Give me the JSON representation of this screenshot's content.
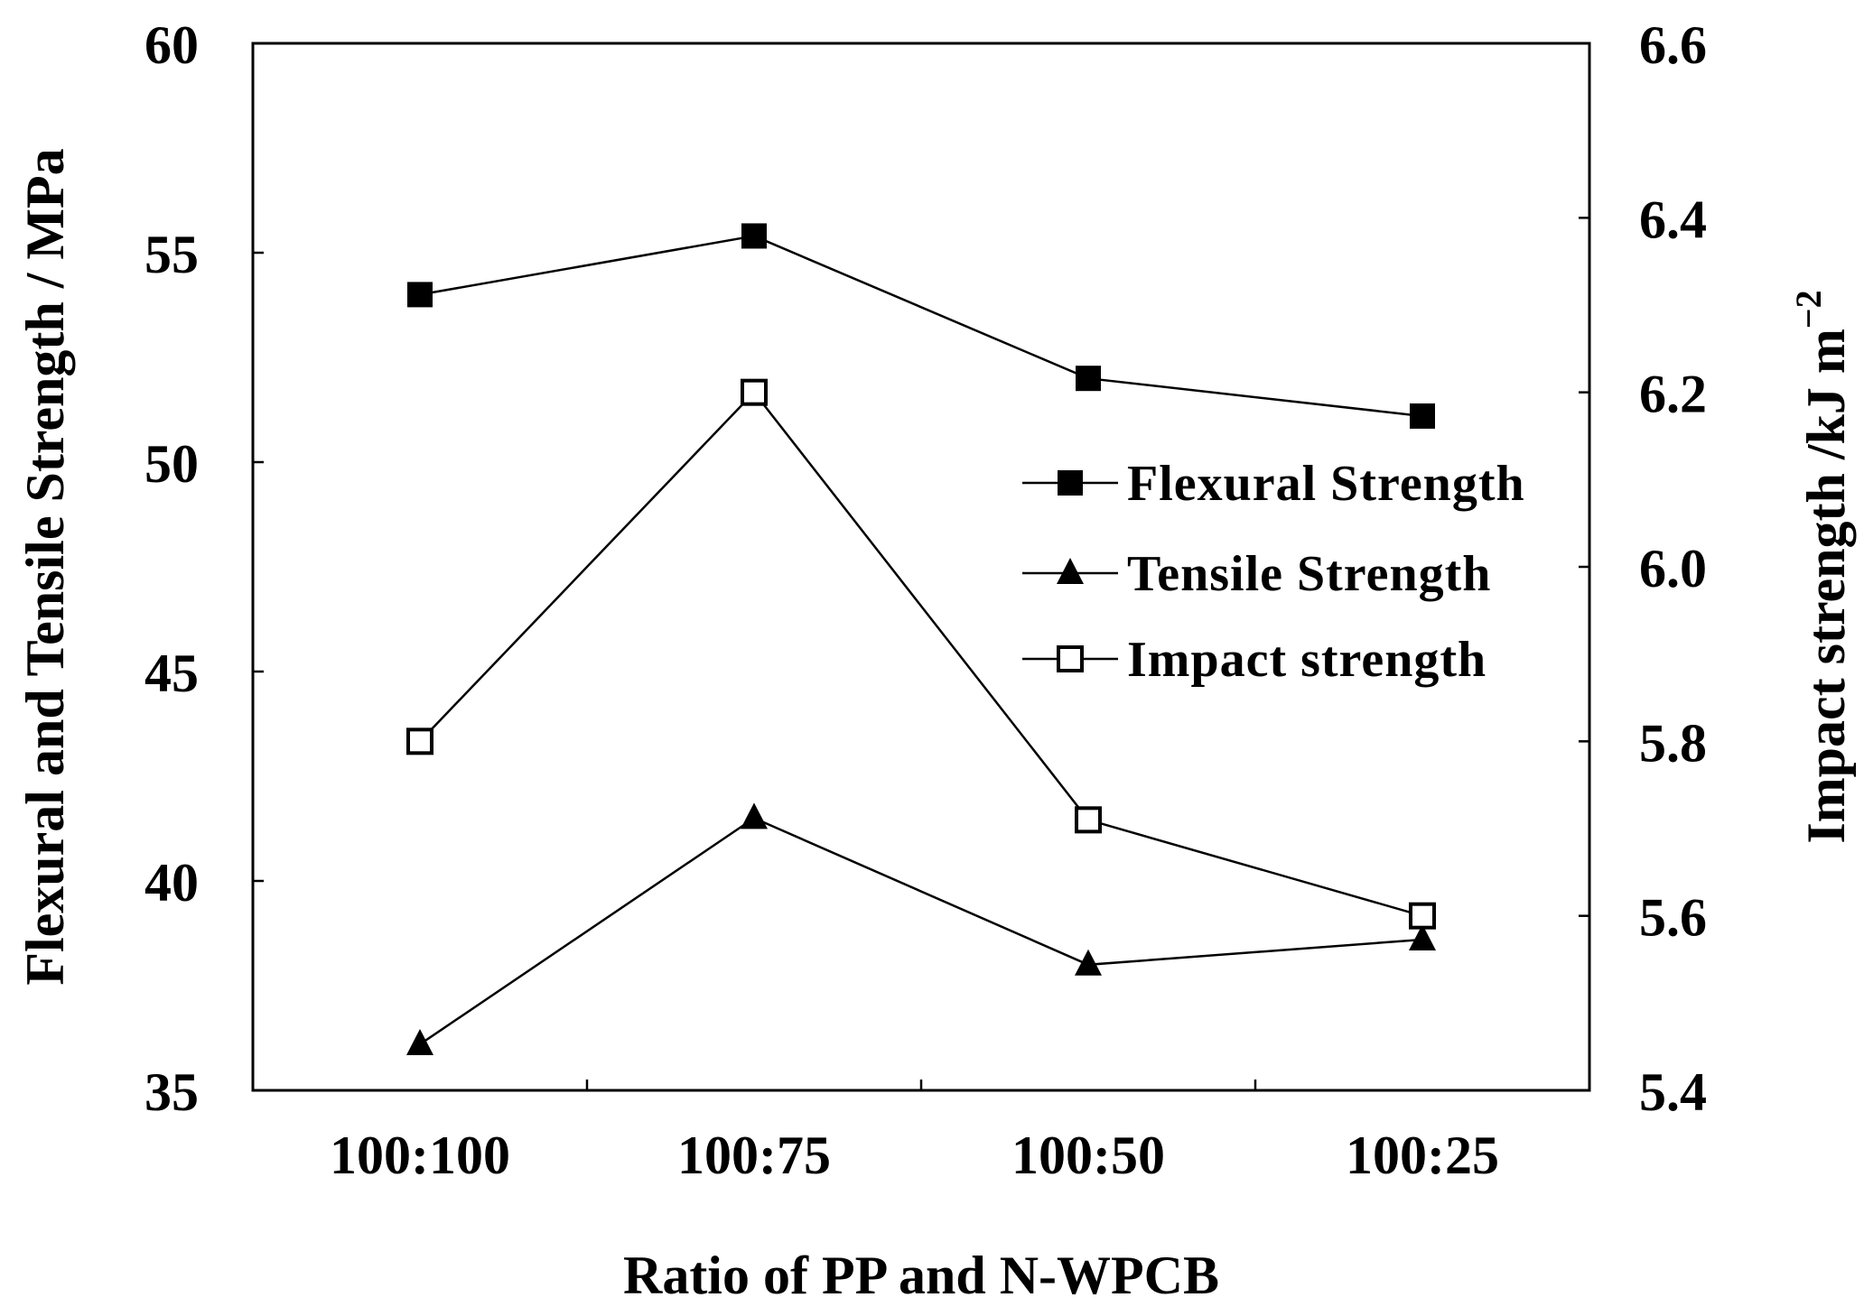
{
  "chart_data": {
    "type": "line",
    "categories": [
      "100:100",
      "100:75",
      "100:50",
      "100:25"
    ],
    "xlabel": "Ratio of PP and N-WPCB",
    "ylabel": "Flexural and Tensile Strength / MPa",
    "ylabel_right": "Impact strength  /kJ m",
    "ylabel_right_sup": "−2",
    "ylim": [
      35,
      60
    ],
    "yticks": [
      "35",
      "40",
      "45",
      "50",
      "55",
      "60"
    ],
    "ylim_right": [
      5.4,
      6.6
    ],
    "yticks_right": [
      "5.4",
      "5.6",
      "5.8",
      "6.0",
      "6.2",
      "6.4",
      "6.6"
    ],
    "legend_position": "right",
    "series": [
      {
        "name": "Flexural Strength",
        "axis": "left",
        "marker": "filled-square",
        "values": [
          54.0,
          55.4,
          52.0,
          51.1
        ]
      },
      {
        "name": "Tensile Strength",
        "axis": "left",
        "marker": "filled-triangle",
        "values": [
          36.1,
          41.5,
          38.0,
          38.6
        ]
      },
      {
        "name": "Impact strength",
        "axis": "right",
        "marker": "open-square",
        "values": [
          5.8,
          6.2,
          5.71,
          5.6
        ]
      }
    ]
  }
}
